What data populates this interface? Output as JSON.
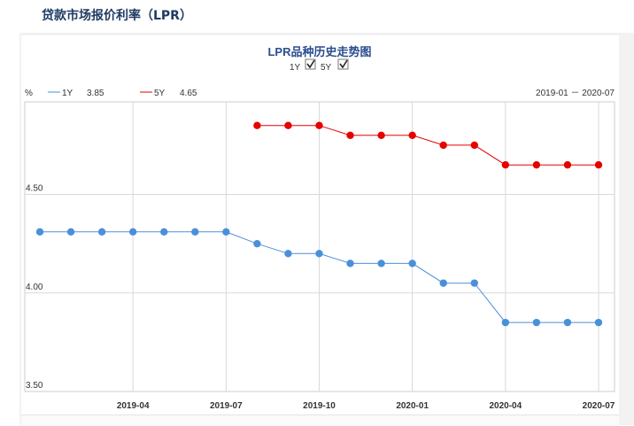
{
  "page": {
    "heading": "贷款市场报价利率（LPR）"
  },
  "chart_data": {
    "type": "line",
    "title": "LPR品种历史走势图",
    "ylabel": "%",
    "range_label": "2019-01 － 2020-07",
    "toggles": [
      {
        "label": "1Y",
        "checked": true
      },
      {
        "label": "5Y",
        "checked": true
      }
    ],
    "legend": [
      {
        "name": "1Y",
        "value": "3.85",
        "color": "#4a90d9"
      },
      {
        "name": "5Y",
        "value": "4.65",
        "color": "#e60000"
      }
    ],
    "ylim": [
      3.5,
      4.97
    ],
    "y_ticks": [
      {
        "value": 3.5,
        "label": "3.50"
      },
      {
        "value": 4.0,
        "label": "4.00"
      },
      {
        "value": 4.5,
        "label": "4.50"
      }
    ],
    "x_ticks": [
      "2019-04",
      "2019-07",
      "2019-10",
      "2020-01",
      "2020-04",
      "2020-07"
    ],
    "x": [
      "2019-01",
      "2019-02",
      "2019-03",
      "2019-04",
      "2019-05",
      "2019-06",
      "2019-07",
      "2019-08",
      "2019-09",
      "2019-10",
      "2019-11",
      "2019-12",
      "2020-01",
      "2020-02",
      "2020-03",
      "2020-04",
      "2020-05",
      "2020-06",
      "2020-07"
    ],
    "series": [
      {
        "name": "1Y",
        "color": "#4a90d9",
        "values": [
          4.31,
          4.31,
          4.31,
          4.31,
          4.31,
          4.31,
          4.31,
          4.25,
          4.2,
          4.2,
          4.15,
          4.15,
          4.15,
          4.05,
          4.05,
          3.85,
          3.85,
          3.85,
          3.85
        ]
      },
      {
        "name": "5Y",
        "color": "#e60000",
        "values": [
          null,
          null,
          null,
          null,
          null,
          null,
          null,
          4.85,
          4.85,
          4.85,
          4.8,
          4.8,
          4.8,
          4.75,
          4.75,
          4.65,
          4.65,
          4.65,
          4.65
        ]
      }
    ]
  }
}
